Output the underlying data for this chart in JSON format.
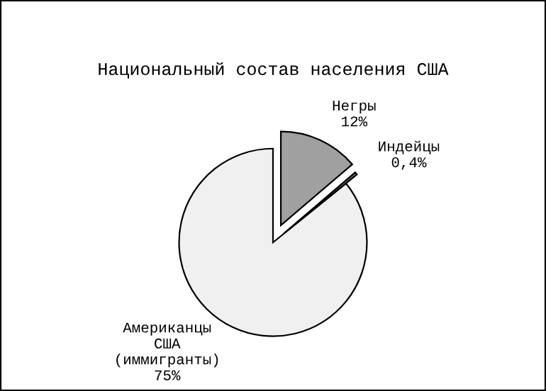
{
  "chart_data": {
    "type": "pie",
    "title": "Национальный состав населения США",
    "categories": [
      "Американцы\nСША\n(иммигранты)\n75%",
      "Индейцы\n0,4%",
      "Негры\n12%"
    ],
    "values": [
      75,
      0.4,
      12
    ],
    "colors": [
      "#f0f0f0",
      "#6e6e6e",
      "#a0a0a0"
    ]
  }
}
